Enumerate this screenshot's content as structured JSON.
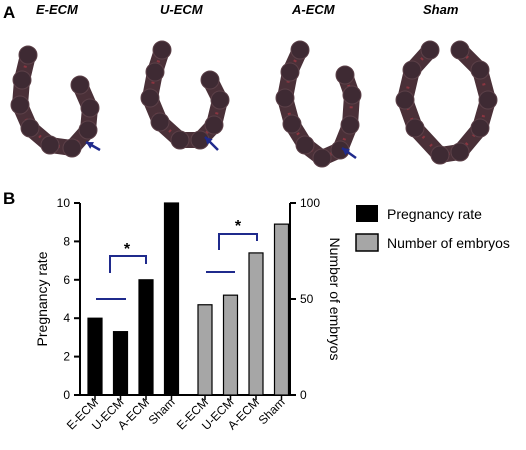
{
  "panel_a": {
    "label": "A",
    "specimens": [
      {
        "label": "E-ECM",
        "has_arrow": true
      },
      {
        "label": "U-ECM",
        "has_arrow": true
      },
      {
        "label": "A-ECM",
        "has_arrow": true
      },
      {
        "label": "Sham",
        "has_arrow": false
      }
    ],
    "tissue_color": "#4a3038",
    "arrow_color": "#1f2a8c"
  },
  "panel_b": {
    "label": "B",
    "legend": [
      {
        "label": "Pregnancy rate",
        "color": "#000000"
      },
      {
        "label": "Number of embryos",
        "color": "#a6a6a6"
      }
    ],
    "significance_marker": "*",
    "bracket_color": "#1f2a8c"
  },
  "chart_data": {
    "type": "bar",
    "y_left": {
      "label": "Pregnancy rate",
      "ylim": [
        0,
        10
      ],
      "ticks": [
        "0",
        "2",
        "4",
        "6",
        "8",
        "10"
      ]
    },
    "y_right": {
      "label": "Number of embryos",
      "ylim": [
        0,
        100
      ],
      "ticks": [
        "0",
        "50",
        "100"
      ]
    },
    "categories": [
      "E-ECM",
      "U-ECM",
      "A-ECM",
      "Sham"
    ],
    "series": [
      {
        "name": "Pregnancy rate",
        "axis": "left",
        "color": "#000000",
        "values": [
          4.0,
          3.3,
          6.0,
          10.0
        ]
      },
      {
        "name": "Number of embryos",
        "axis": "right",
        "color": "#a6a6a6",
        "values": [
          47,
          52,
          74,
          89
        ]
      }
    ],
    "grid": false
  }
}
